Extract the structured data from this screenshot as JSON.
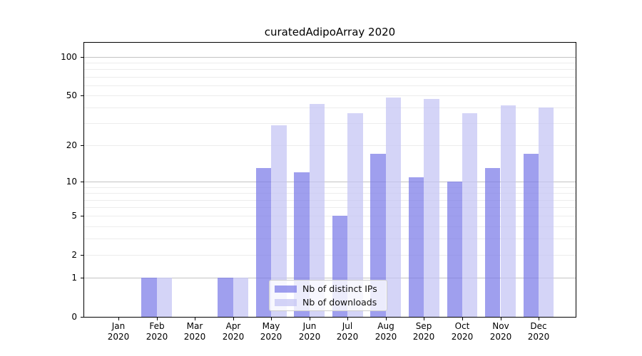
{
  "title": "curatedAdipoArray 2020",
  "colors": {
    "ips_bar": "rgba(122,122,232,0.72)",
    "downloads_bar": "rgba(196,196,244,0.72)",
    "grid_major": "#c3c3c3",
    "grid_minor": "#ececec",
    "axis": "#000000",
    "legend_border": "#cccccc"
  },
  "legend": {
    "items": [
      {
        "label": "Nb of distinct IPs",
        "color_key": "ips_bar"
      },
      {
        "label": "Nb of downloads",
        "color_key": "downloads_bar"
      }
    ]
  },
  "chart_data": {
    "type": "bar",
    "title": "curatedAdipoArray 2020",
    "categories": [
      "Jan 2020",
      "Feb 2020",
      "Mar 2020",
      "Apr 2020",
      "May 2020",
      "Jun 2020",
      "Jul 2020",
      "Aug 2020",
      "Sep 2020",
      "Oct 2020",
      "Nov 2020",
      "Dec 2020"
    ],
    "series": [
      {
        "name": "Nb of distinct IPs",
        "values": [
          0,
          1,
          0,
          1,
          13,
          12,
          5,
          17,
          11,
          10,
          13,
          17
        ],
        "color_key": "ips_bar"
      },
      {
        "name": "Nb of downloads",
        "values": [
          0,
          1,
          0,
          1,
          29,
          43,
          36,
          48,
          47,
          36,
          42,
          40
        ],
        "color_key": "downloads_bar"
      }
    ],
    "yscale": "log1p",
    "ylim": [
      0,
      129
    ],
    "y_ticks": [
      100,
      50,
      20,
      10,
      5,
      2,
      1,
      0
    ],
    "grid_major_values": [
      1,
      10,
      100
    ],
    "grid_minor_values": [
      2,
      3,
      4,
      5,
      6,
      7,
      8,
      9,
      20,
      30,
      40,
      50,
      60,
      70,
      80,
      90
    ],
    "grid": "horizontal",
    "legend_position": "lower center",
    "xlabel": "",
    "ylabel": ""
  }
}
